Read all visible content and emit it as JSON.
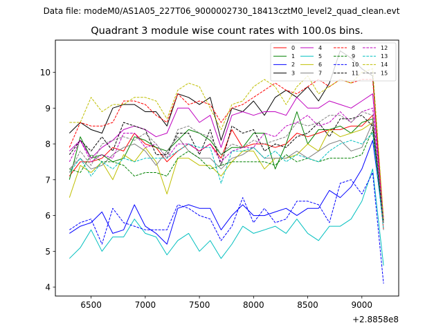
{
  "chart_data": {
    "type": "line",
    "suptitle": "Data file: modeM0/AS1A05_227T06_9000002730_18413cztM0_level2_quad_clean.evt",
    "title": "Quadrant 3 module wise count rates with 100.0s bins.",
    "xlabel": "",
    "ylabel": "",
    "x_offset_label": "+2.8858e8",
    "xlim": [
      6170,
      9340
    ],
    "ylim": [
      3.75,
      10.9
    ],
    "xticks": [
      6500,
      7000,
      7500,
      8000,
      8500,
      9000
    ],
    "yticks": [
      4,
      5,
      6,
      7,
      8,
      9,
      10
    ],
    "grid": false,
    "legend_position": "top-right",
    "x": [
      6300,
      6400,
      6500,
      6600,
      6700,
      6800,
      6900,
      7000,
      7100,
      7200,
      7300,
      7400,
      7500,
      7600,
      7700,
      7800,
      7900,
      8000,
      8100,
      8200,
      8300,
      8400,
      8500,
      8600,
      8700,
      8800,
      8900,
      9000,
      9100,
      9200
    ],
    "series": [
      {
        "name": "0",
        "color": "#ff0000",
        "dash": "solid",
        "values": [
          7.1,
          7.5,
          7.5,
          7.6,
          7.9,
          7.8,
          8.3,
          8.0,
          7.9,
          7.5,
          7.8,
          8.0,
          7.8,
          8.0,
          7.6,
          8.4,
          7.9,
          8.0,
          8.0,
          7.9,
          8.0,
          8.3,
          8.2,
          8.3,
          8.4,
          8.4,
          8.5,
          8.5,
          8.8,
          5.6
        ]
      },
      {
        "name": "1",
        "color": "#008000",
        "dash": "solid",
        "values": [
          7.0,
          8.2,
          7.6,
          7.7,
          7.5,
          7.6,
          8.2,
          8.1,
          7.9,
          7.8,
          8.1,
          8.4,
          8.3,
          8.1,
          7.7,
          7.9,
          7.9,
          8.3,
          8.3,
          7.3,
          8.0,
          8.9,
          8.0,
          8.4,
          8.4,
          8.5,
          8.3,
          8.6,
          8.7,
          5.8
        ]
      },
      {
        "name": "2",
        "color": "#0000ff",
        "dash": "solid",
        "values": [
          5.5,
          5.7,
          5.8,
          6.1,
          5.5,
          5.6,
          6.3,
          5.7,
          5.5,
          5.2,
          6.2,
          6.3,
          6.2,
          6.2,
          5.6,
          6.0,
          6.3,
          6.0,
          6.0,
          6.1,
          6.2,
          6.0,
          6.2,
          6.2,
          6.7,
          6.5,
          6.8,
          7.3,
          8.1,
          5.8
        ]
      },
      {
        "name": "3",
        "color": "#000000",
        "dash": "solid",
        "values": [
          8.3,
          8.6,
          8.4,
          8.3,
          9.0,
          9.1,
          9.1,
          8.9,
          8.9,
          8.5,
          9.4,
          9.3,
          9.1,
          9.3,
          8.1,
          9.0,
          8.9,
          9.2,
          8.8,
          9.3,
          9.5,
          9.3,
          9.6,
          9.2,
          9.7,
          10.6,
          10.4,
          10.1,
          9.9,
          5.8
        ]
      },
      {
        "name": "4",
        "color": "#bf00bf",
        "dash": "solid",
        "values": [
          7.8,
          8.1,
          7.6,
          7.9,
          8.1,
          8.4,
          8.5,
          8.4,
          8.2,
          8.3,
          9.0,
          9.0,
          8.6,
          8.8,
          7.9,
          8.8,
          8.9,
          8.8,
          8.9,
          8.9,
          8.8,
          9.3,
          9.0,
          9.0,
          9.2,
          9.1,
          9.0,
          9.2,
          9.4,
          5.8
        ]
      },
      {
        "name": "5",
        "color": "#00bfbf",
        "dash": "solid",
        "values": [
          4.8,
          5.1,
          5.6,
          5.0,
          5.4,
          5.4,
          5.9,
          5.5,
          5.4,
          4.9,
          5.3,
          5.5,
          5.0,
          5.3,
          4.8,
          5.2,
          5.7,
          5.5,
          5.6,
          5.7,
          5.5,
          5.9,
          5.5,
          5.3,
          5.7,
          5.7,
          5.9,
          6.4,
          7.3,
          4.6
        ]
      },
      {
        "name": "6",
        "color": "#bfbf00",
        "dash": "solid",
        "values": [
          6.5,
          7.4,
          7.2,
          7.5,
          7.0,
          7.7,
          7.5,
          7.9,
          7.5,
          6.6,
          7.6,
          7.6,
          7.4,
          7.4,
          7.1,
          7.5,
          7.8,
          7.8,
          7.3,
          7.6,
          7.6,
          7.7,
          8.0,
          7.8,
          8.4,
          8.2,
          8.3,
          8.4,
          8.6,
          5.8
        ]
      },
      {
        "name": "7",
        "color": "#808080",
        "dash": "solid",
        "values": [
          7.3,
          7.6,
          7.3,
          7.4,
          7.7,
          7.9,
          8.0,
          7.8,
          7.4,
          7.8,
          8.2,
          7.8,
          7.6,
          7.6,
          7.3,
          7.6,
          7.7,
          7.9,
          7.6,
          7.6,
          7.6,
          7.8,
          7.6,
          7.8,
          8.0,
          8.1,
          7.8,
          7.9,
          8.6,
          5.8
        ]
      },
      {
        "name": "8",
        "color": "#ff0000",
        "dash": "dashed",
        "values": [
          7.9,
          8.6,
          8.5,
          8.5,
          8.6,
          9.2,
          9.2,
          9.1,
          8.8,
          8.6,
          9.4,
          9.1,
          9.2,
          9.1,
          8.6,
          9.0,
          9.1,
          9.3,
          9.5,
          9.7,
          9.5,
          9.4,
          9.6,
          9.8,
          9.6,
          9.8,
          9.7,
          9.8,
          9.8,
          5.9
        ]
      },
      {
        "name": "9",
        "color": "#008000",
        "dash": "dashed",
        "values": [
          7.3,
          7.2,
          7.7,
          7.5,
          7.5,
          7.4,
          7.1,
          7.2,
          7.2,
          7.1,
          7.6,
          7.8,
          7.6,
          7.3,
          7.4,
          7.5,
          7.5,
          7.5,
          7.5,
          7.4,
          7.7,
          7.5,
          7.6,
          7.5,
          7.6,
          7.6,
          7.6,
          7.7,
          8.4,
          5.8
        ]
      },
      {
        "name": "10",
        "color": "#0000ff",
        "dash": "dashed",
        "values": [
          5.6,
          5.8,
          5.9,
          5.2,
          6.2,
          5.8,
          5.7,
          5.6,
          5.6,
          5.6,
          6.3,
          6.2,
          6.0,
          5.9,
          5.3,
          5.7,
          6.5,
          5.8,
          6.2,
          5.8,
          5.9,
          6.4,
          6.4,
          6.3,
          5.8,
          6.9,
          7.0,
          6.6,
          7.2,
          4.1
        ]
      },
      {
        "name": "11",
        "color": "#000000",
        "dash": "dashed",
        "values": [
          7.7,
          8.1,
          7.8,
          8.2,
          7.8,
          8.6,
          8.5,
          8.4,
          7.7,
          7.7,
          8.3,
          8.3,
          7.7,
          8.4,
          7.4,
          8.5,
          8.3,
          8.4,
          7.8,
          8.0,
          7.9,
          8.2,
          8.3,
          8.6,
          8.2,
          8.7,
          8.7,
          8.8,
          8.5,
          5.8
        ]
      },
      {
        "name": "12",
        "color": "#bf00bf",
        "dash": "dashed",
        "values": [
          7.5,
          8.1,
          7.5,
          7.7,
          7.6,
          8.3,
          8.3,
          7.9,
          8.0,
          7.6,
          8.0,
          8.0,
          7.8,
          8.0,
          7.5,
          7.8,
          7.9,
          7.9,
          8.3,
          8.2,
          8.5,
          8.6,
          8.8,
          8.5,
          8.6,
          8.9,
          8.6,
          8.9,
          9.0,
          5.9
        ]
      },
      {
        "name": "13",
        "color": "#00bfbf",
        "dash": "dashed",
        "values": [
          7.2,
          7.6,
          7.1,
          7.5,
          7.3,
          7.6,
          7.5,
          7.6,
          7.6,
          7.6,
          7.8,
          8.0,
          7.9,
          7.9,
          6.9,
          7.8,
          7.8,
          7.9,
          7.6,
          7.8,
          7.5,
          7.7,
          7.6,
          7.5,
          7.8,
          8.0,
          8.1,
          8.0,
          8.3,
          5.6
        ]
      },
      {
        "name": "14",
        "color": "#bfbf00",
        "dash": "dashed",
        "values": [
          8.6,
          8.6,
          9.3,
          8.9,
          9.1,
          9.1,
          9.3,
          9.3,
          9.2,
          8.7,
          9.5,
          9.7,
          9.6,
          9.0,
          8.4,
          9.1,
          9.2,
          9.6,
          9.8,
          9.6,
          9.1,
          9.6,
          9.9,
          9.4,
          9.6,
          9.8,
          9.7,
          10.0,
          10.1,
          5.9
        ]
      },
      {
        "name": "15",
        "color": "#808080",
        "dash": "dashed",
        "values": [
          7.2,
          7.8,
          7.4,
          8.0,
          8.1,
          8.2,
          8.1,
          8.3,
          8.0,
          7.6,
          8.4,
          8.5,
          8.3,
          8.2,
          7.7,
          8.0,
          7.9,
          8.1,
          8.0,
          8.1,
          8.2,
          8.6,
          8.5,
          8.6,
          8.8,
          8.8,
          8.6,
          8.9,
          8.8,
          5.8
        ]
      }
    ]
  }
}
